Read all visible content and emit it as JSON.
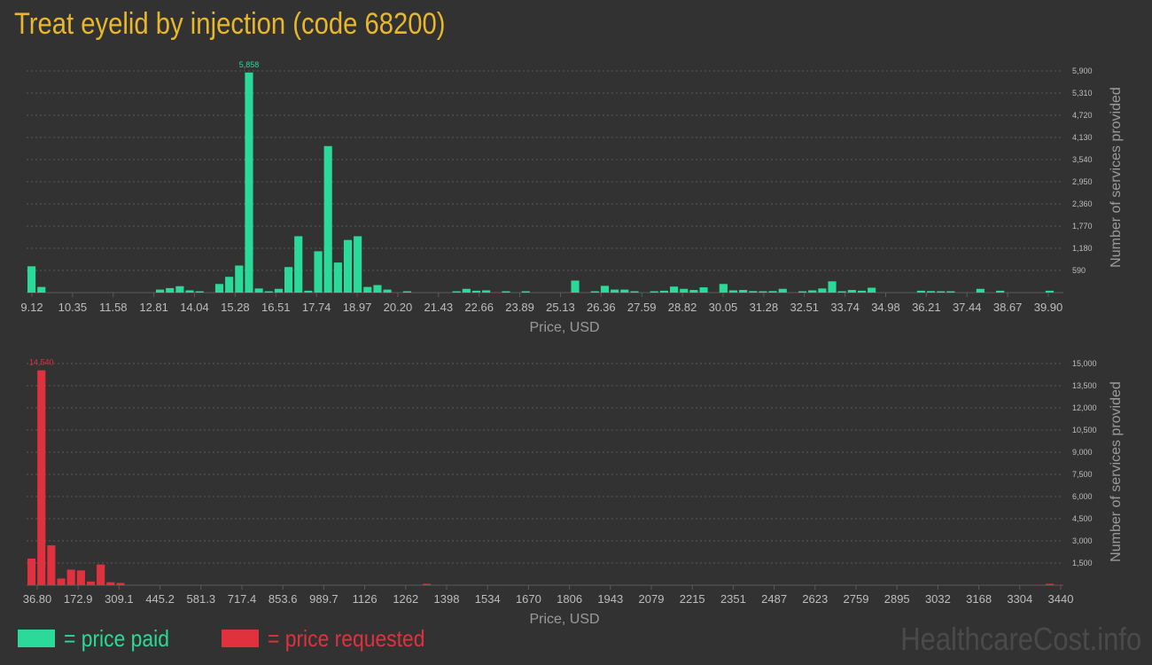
{
  "title": "Treat eyelid by injection (code 68200)",
  "legend": {
    "paid_label": "= price paid",
    "requested_label": "= price requested"
  },
  "watermark": "HealthcareCost.info",
  "colors": {
    "paid": "#2bd99a",
    "requested": "#e0313e",
    "title": "#e8b82a",
    "background": "#323232"
  },
  "chart_data": [
    {
      "type": "bar",
      "series": [
        {
          "name": "price paid",
          "values": [
            700,
            150,
            0,
            0,
            0,
            0,
            0,
            0,
            0,
            0,
            0,
            0,
            0,
            80,
            120,
            170,
            60,
            30,
            0,
            230,
            420,
            720,
            5858,
            110,
            30,
            100,
            680,
            1500,
            50,
            1100,
            3900,
            800,
            1400,
            1500,
            150,
            200,
            80,
            0,
            20,
            0,
            0,
            0,
            0,
            20,
            100,
            50,
            60,
            0,
            20,
            0,
            20,
            0,
            0,
            0,
            0,
            320,
            0,
            20,
            180,
            80,
            80,
            20,
            0,
            20,
            50,
            160,
            100,
            70,
            140,
            0,
            230,
            60,
            70,
            40,
            20,
            40,
            100,
            0,
            30,
            60,
            110,
            300,
            20,
            70,
            50,
            130,
            0,
            0,
            0,
            0,
            50,
            40,
            30,
            20,
            0,
            0,
            100,
            0,
            50,
            0,
            0,
            0,
            0,
            50
          ]
        }
      ],
      "xlabel": "Price, USD",
      "ylabel": "Number of services provided",
      "x_tick_labels": [
        "9.12",
        "10.35",
        "11.58",
        "12.81",
        "14.04",
        "15.28",
        "16.51",
        "17.74",
        "18.97",
        "20.20",
        "21.43",
        "22.66",
        "23.89",
        "25.13",
        "26.36",
        "27.59",
        "28.82",
        "30.05",
        "31.28",
        "32.51",
        "33.74",
        "34.98",
        "36.21",
        "37.44",
        "38.67",
        "39.90"
      ],
      "y_tick_labels": [
        "590",
        "1,180",
        "1,770",
        "2,360",
        "2,950",
        "3,540",
        "4,130",
        "4,720",
        "5,310",
        "5,900"
      ],
      "ylim": [
        0,
        5900
      ],
      "peak_label": "5,858",
      "grid": true
    },
    {
      "type": "bar",
      "series": [
        {
          "name": "price requested",
          "values": [
            1800,
            14540,
            2700,
            450,
            1050,
            1000,
            250,
            1400,
            200,
            150,
            0,
            0,
            0,
            0,
            0,
            0,
            0,
            0,
            0,
            0,
            0,
            0,
            0,
            0,
            0,
            0,
            0,
            0,
            0,
            0,
            0,
            0,
            0,
            0,
            0,
            0,
            0,
            0,
            0,
            0,
            40,
            0,
            0,
            0,
            0,
            0,
            0,
            0,
            0,
            0,
            0,
            0,
            0,
            0,
            0,
            0,
            0,
            0,
            0,
            0,
            0,
            0,
            0,
            0,
            0,
            0,
            0,
            0,
            0,
            0,
            0,
            0,
            0,
            0,
            0,
            0,
            0,
            0,
            0,
            0,
            0,
            0,
            0,
            0,
            0,
            0,
            0,
            0,
            0,
            0,
            0,
            0,
            0,
            0,
            0,
            0,
            0,
            0,
            0,
            0,
            0,
            0,
            0,
            40
          ]
        }
      ],
      "xlabel": "Price, USD",
      "ylabel": "Number of services provided",
      "x_tick_labels": [
        "36.80",
        "172.9",
        "309.1",
        "445.2",
        "581.3",
        "717.4",
        "853.6",
        "989.7",
        "1126",
        "1262",
        "1398",
        "1534",
        "1670",
        "1806",
        "1943",
        "2079",
        "2215",
        "2351",
        "2487",
        "2623",
        "2759",
        "2895",
        "3032",
        "3168",
        "3304",
        "3440"
      ],
      "y_tick_labels": [
        "1,500",
        "3,000",
        "4,500",
        "6,000",
        "7,500",
        "9,000",
        "10,500",
        "12,000",
        "13,500",
        "15,000"
      ],
      "ylim": [
        0,
        15000
      ],
      "peak_label": "14,540",
      "grid": true
    }
  ]
}
